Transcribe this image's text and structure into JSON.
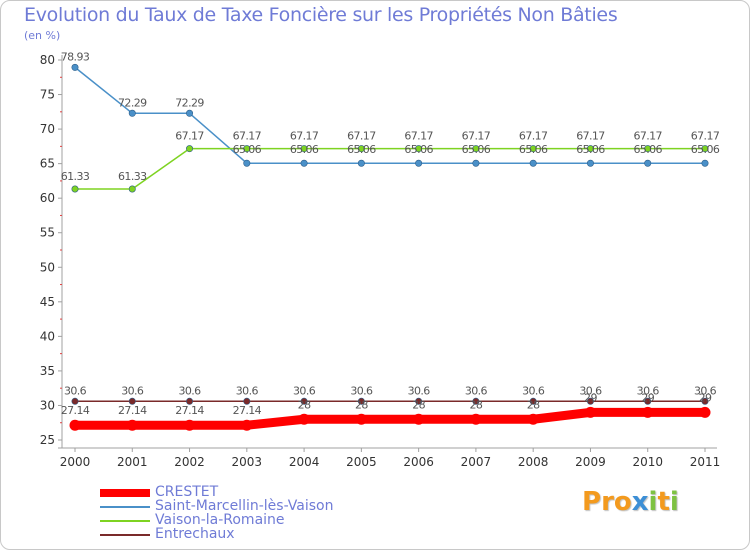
{
  "chart_data": {
    "type": "line",
    "title": "Evolution du Taux de Taxe Foncière sur les Propriétés Non Bâties",
    "unit_label": "(en %)",
    "x": [
      "2000",
      "2001",
      "2002",
      "2003",
      "2004",
      "2005",
      "2006",
      "2007",
      "2008",
      "2009",
      "2010",
      "2011"
    ],
    "ylim": [
      25,
      80
    ],
    "yticks": [
      25,
      30,
      35,
      40,
      45,
      50,
      55,
      60,
      65,
      70,
      75,
      80
    ],
    "grid": false,
    "legend_position": "bottom-left",
    "series": [
      {
        "name": "CRESTET",
        "color": "#ff0000",
        "values": [
          27.14,
          27.14,
          27.14,
          27.14,
          28,
          28,
          28,
          28,
          28,
          29,
          29,
          29
        ],
        "labels": [
          "27.14",
          "27.14",
          "27.14",
          "27.14",
          "28",
          "28",
          "28",
          "28",
          "28",
          "29",
          "29",
          "29"
        ]
      },
      {
        "name": "Saint-Marcellin-lès-Vaison",
        "color": "#4a90c8",
        "values": [
          78.93,
          72.29,
          72.29,
          65.06,
          65.06,
          65.06,
          65.06,
          65.06,
          65.06,
          65.06,
          65.06,
          65.06
        ],
        "labels": [
          "78.93",
          "72.29",
          "72.29",
          "65.06",
          "65.06",
          "65.06",
          "65.06",
          "65.06",
          "65.06",
          "65.06",
          "65.06",
          "65.06"
        ]
      },
      {
        "name": "Vaison-la-Romaine",
        "color": "#7ed321",
        "values": [
          61.33,
          61.33,
          67.17,
          67.17,
          67.17,
          67.17,
          67.17,
          67.17,
          67.17,
          67.17,
          67.17,
          67.17
        ],
        "labels": [
          "61.33",
          "61.33",
          "67.17",
          "67.17",
          "67.17",
          "67.17",
          "67.17",
          "67.17",
          "67.17",
          "67.17",
          "67.17",
          "67.17"
        ]
      },
      {
        "name": "Entrechaux",
        "color": "#7a2a2a",
        "values": [
          30.6,
          30.6,
          30.6,
          30.6,
          30.6,
          30.6,
          30.6,
          30.6,
          30.6,
          30.6,
          30.6,
          30.6
        ],
        "labels": [
          "30.6",
          "30.6",
          "30.6",
          "30.6",
          "30.6",
          "30.6",
          "30.6",
          "30.6",
          "30.6",
          "30.6",
          "30.6",
          "30.6"
        ]
      }
    ]
  },
  "logo": {
    "text": "Proxiti"
  },
  "colors": {
    "text_accent": "#6f7bd6",
    "axis": "#a0a0a0",
    "tick_text": "#333333",
    "label_text": "#555555"
  }
}
